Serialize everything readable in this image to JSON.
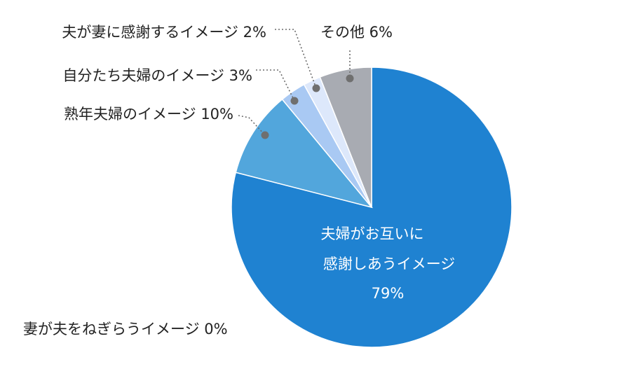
{
  "chart_data": {
    "type": "pie",
    "title": "",
    "start_angle_deg": 0,
    "direction": "clockwise",
    "slices": [
      {
        "label": "夫婦がお互いに感謝しあうイメージ",
        "value": 79,
        "value_label": "79%",
        "color": "#1f82d1",
        "label_lines": [
          "夫婦がお互いに",
          "感謝しあうイメージ",
          "79%"
        ]
      },
      {
        "label": "妻が夫をねぎらうイメージ",
        "value": 0,
        "value_label": "0%",
        "color": "#1f82d1",
        "display": "妻が夫をねぎらうイメージ 0%"
      },
      {
        "label": "熟年夫婦のイメージ",
        "value": 10,
        "value_label": "10%",
        "color": "#52a6dc",
        "display": "熟年夫婦のイメージ 10%"
      },
      {
        "label": "自分たち夫婦のイメージ",
        "value": 3,
        "value_label": "3%",
        "color": "#a9c9f3",
        "display": "自分たち夫婦のイメージ  3%"
      },
      {
        "label": "夫が妻に感謝するイメージ",
        "value": 2,
        "value_label": "2%",
        "color": "#dde8fb",
        "display": "夫が妻に感謝するイメージ  2%"
      },
      {
        "label": "その他",
        "value": 6,
        "value_label": "6%",
        "color": "#a8abb2",
        "display": "その他  6%"
      }
    ]
  }
}
